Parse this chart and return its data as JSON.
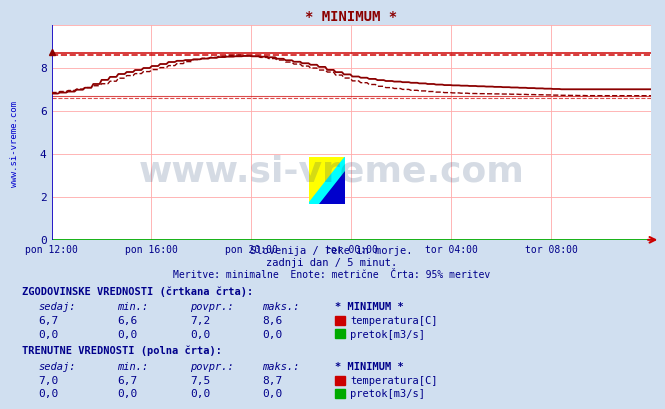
{
  "title": "* MINIMUM *",
  "bg_color": "#d0dff0",
  "plot_bg_color": "#ffffff",
  "grid_color_h": "#ffaaaa",
  "grid_color_v": "#ffaaaa",
  "x_labels": [
    "pon 12:00",
    "pon 16:00",
    "pon 20:00",
    "tor 00:00",
    "tor 04:00",
    "tor 08:00"
  ],
  "ylim": [
    0,
    10
  ],
  "yticks": [
    0,
    2,
    4,
    6,
    8
  ],
  "ylabel_left": "www.si-vreme.com",
  "subtitle1": "Slovenija / reke in morje.",
  "subtitle2": "zadnji dan / 5 minut.",
  "subtitle3": "Meritve: minimalne  Enote: metrične  Črta: 95% meritev",
  "line_color": "#8b0000",
  "hline_color": "#cc0000",
  "axis_color": "#0000cc",
  "zero_line_color": "#00aa00",
  "watermark_text": "www.si-vreme.com",
  "watermark_color": "#1a3a6b",
  "watermark_alpha": 0.18,
  "table_title_color": "#00008b",
  "table_header_color": "#00008b",
  "table_value_color": "#00008b",
  "hist_label": "ZGODOVINSKE VREDNOSTI (črtkana črta):",
  "curr_label": "TRENUTNE VREDNOSTI (polna črta):",
  "col_headers": [
    "sedaj:",
    "min.:",
    "povpr.:",
    "maks.:",
    "* MINIMUM *"
  ],
  "hist_temp": [
    6.7,
    6.6,
    7.2,
    8.6
  ],
  "hist_flow": [
    0.0,
    0.0,
    0.0,
    0.0
  ],
  "curr_temp": [
    7.0,
    6.7,
    7.5,
    8.7
  ],
  "curr_flow": [
    0.0,
    0.0,
    0.0,
    0.0
  ],
  "temp_color": "#cc0000",
  "flow_color": "#00aa00",
  "hline_max_solid": 8.7,
  "hline_max_dashed": 8.6,
  "hline_min_solid": 6.7,
  "hline_min_dashed": 6.6
}
